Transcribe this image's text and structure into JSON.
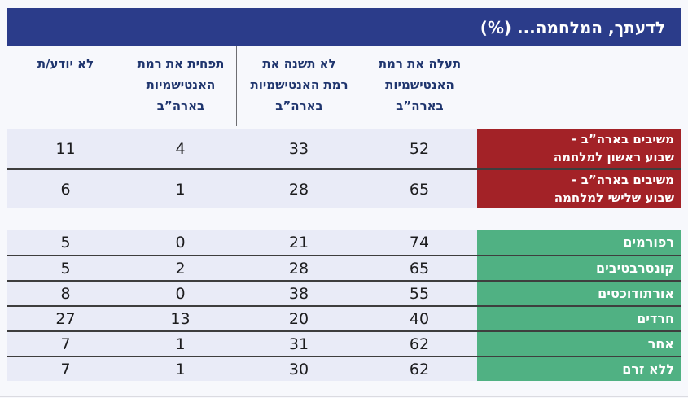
{
  "title": "לדעתך, המלחמה... (%)",
  "table": {
    "columns": [
      {
        "id": "increase",
        "label": "תעלה את רמת האנטישמיות בארה”ב",
        "lines": [
          "תעלה את רמת",
          "האנטישמיות",
          "בארה”ב"
        ]
      },
      {
        "id": "no-change",
        "label": "לא תשנה את רמת האנטישמיות בארה”ב",
        "lines": [
          "לא תשנה את",
          "רמת האנטישמיות",
          "בארה”ב"
        ]
      },
      {
        "id": "decrease",
        "label": "תפחית את רמת האנטישמיות בארה”ב",
        "lines": [
          "תפחית את רמת",
          "האנטישמיות",
          "בארה”ב"
        ]
      },
      {
        "id": "dont-know",
        "label": "לא יודע/ת",
        "lines": [
          "לא יודע/ת"
        ]
      }
    ],
    "groups": [
      {
        "id": "us-respondents",
        "rows": [
          {
            "label_lines": [
              "משיבים בארה”ב -",
              "שבוע ראשון למלחמה"
            ],
            "values": [
              52,
              33,
              4,
              11
            ]
          },
          {
            "label_lines": [
              "משיבים בארה”ב -",
              "שבוע שלישי למלחמה"
            ],
            "values": [
              65,
              28,
              1,
              6
            ]
          }
        ]
      },
      {
        "id": "jewish-denominations",
        "rows": [
          {
            "label": "רפורמים",
            "values": [
              74,
              21,
              0,
              5
            ]
          },
          {
            "label": "קונסרבטיבים",
            "values": [
              65,
              28,
              2,
              5
            ]
          },
          {
            "label": "אורתודוכסים",
            "values": [
              55,
              38,
              0,
              8
            ]
          },
          {
            "label": "חרדים",
            "values": [
              40,
              20,
              13,
              27
            ]
          },
          {
            "label": "אחר",
            "values": [
              62,
              31,
              1,
              7
            ]
          },
          {
            "label": "ללא זרם",
            "values": [
              62,
              30,
              1,
              7
            ]
          }
        ]
      }
    ]
  },
  "colors": {
    "title_bar_bg": "#2B3C8A",
    "header_text": "#1F356E",
    "us_rows_label_bg": "#A32227",
    "denomination_rows_label_bg": "#50B183",
    "value_cell_bg": "#E9EBF7",
    "page_bg": "#F7F8FC",
    "row_separator": "#3E3E3E"
  },
  "chart_data": {
    "type": "table",
    "title": "לדעתך, המלחמה... (%)",
    "units": "percent",
    "columns": [
      "תעלה את רמת האנטישמיות בארה”ב",
      "לא תשנה את רמת האנטישמיות בארה”ב",
      "תפחית את רמת האנטישמיות בארה”ב",
      "לא יודע/ת"
    ],
    "rows": [
      {
        "label": "משיבים בארה”ב - שבוע ראשון למלחמה",
        "values": [
          52,
          33,
          4,
          11
        ]
      },
      {
        "label": "משיבים בארה”ב - שבוע שלישי למלחמה",
        "values": [
          65,
          28,
          1,
          6
        ]
      },
      {
        "label": "רפורמים",
        "values": [
          74,
          21,
          0,
          5
        ]
      },
      {
        "label": "קונסרבטיבים",
        "values": [
          65,
          28,
          2,
          5
        ]
      },
      {
        "label": "אורתודוכסים",
        "values": [
          55,
          38,
          0,
          8
        ]
      },
      {
        "label": "חרדים",
        "values": [
          40,
          20,
          13,
          27
        ]
      },
      {
        "label": "אחר",
        "values": [
          62,
          31,
          1,
          7
        ]
      },
      {
        "label": "ללא זרם",
        "values": [
          62,
          30,
          1,
          7
        ]
      }
    ]
  }
}
